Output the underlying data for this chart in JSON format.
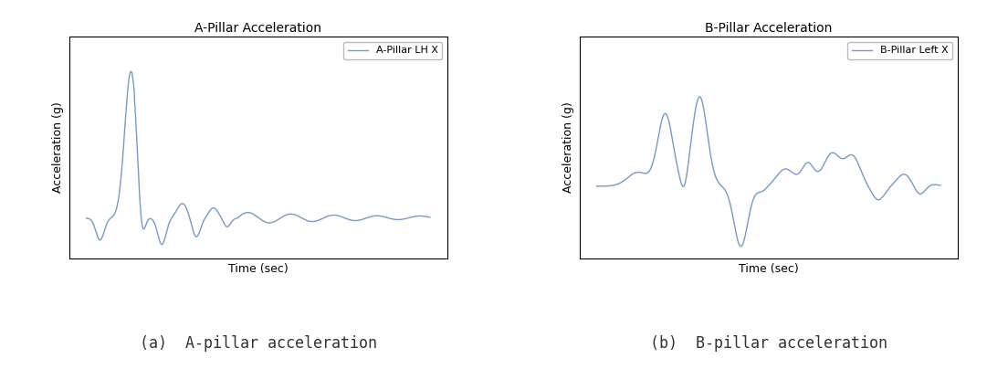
{
  "title_a": "A-Pillar Acceleration",
  "title_b": "B-Pillar Acceleration",
  "xlabel": "Time (sec)",
  "ylabel": "Acceleration (g)",
  "legend_a": "A-Pillar LH X",
  "legend_b": "B-Pillar Left X",
  "line_color": "#7799cc",
  "caption_a": "(a)  A-pillar acceleration",
  "caption_b": "(b)  B-pillar acceleration",
  "caption_fontsize": 12,
  "title_fontsize": 10,
  "label_fontsize": 9,
  "legend_fontsize": 8,
  "bg_color": "#ffffff",
  "fig_bg_color": "#ffffff"
}
